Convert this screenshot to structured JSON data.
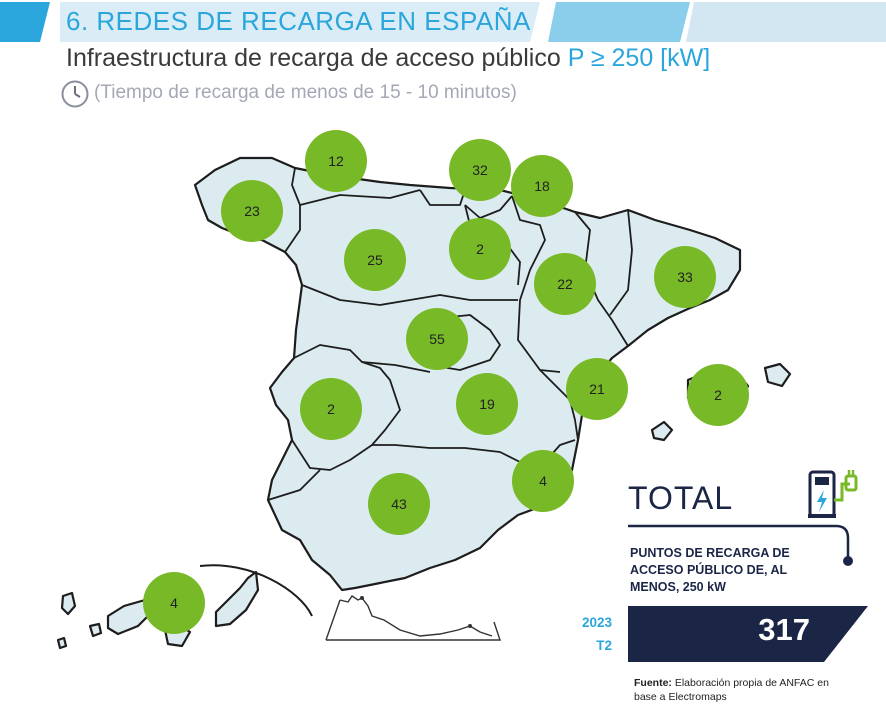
{
  "header": {
    "title": "6. REDES DE RECARGA EN ESPAÑA",
    "subtitle_main": "Infraestructura de recarga de acceso público",
    "subtitle_highlight": "P ≥ 250 [kW]",
    "note": "(Tiempo de recarga de menos de 15 - 10 minutos)"
  },
  "regions": [
    {
      "name": "Galicia",
      "value": "23"
    },
    {
      "name": "Asturias",
      "value": "12"
    },
    {
      "name": "Cantabria",
      "value": "32"
    },
    {
      "name": "País Vasco",
      "value": "18"
    },
    {
      "name": "Castilla y León",
      "value": "25"
    },
    {
      "name": "La Rioja",
      "value": "2"
    },
    {
      "name": "Aragón",
      "value": "22"
    },
    {
      "name": "Cataluña",
      "value": "33"
    },
    {
      "name": "Madrid",
      "value": "55"
    },
    {
      "name": "Extremadura",
      "value": "2"
    },
    {
      "name": "Castilla-La Mancha",
      "value": "19"
    },
    {
      "name": "Comunidad Valenciana",
      "value": "21"
    },
    {
      "name": "Baleares",
      "value": "2"
    },
    {
      "name": "Murcia",
      "value": "4"
    },
    {
      "name": "Andalucía",
      "value": "43"
    },
    {
      "name": "Canarias",
      "value": "4"
    }
  ],
  "total": {
    "title": "TOTAL",
    "caption": "PUNTOS DE RECARGA DE ACCESO PÚBLICO DE, AL MENOS, 250 kW",
    "year": "2023",
    "quarter": "T2",
    "value": "317"
  },
  "source": {
    "label": "Fuente:",
    "text": "Elaboración propia de ANFAC en base a Electromaps"
  },
  "colors": {
    "accent": "#2aa6dd",
    "bubble": "#78b928",
    "land": "#dcebf0",
    "navy": "#1b2647",
    "header_band": "#2aa6dd"
  },
  "icons": [
    "clock-icon",
    "ev-charger-icon"
  ]
}
